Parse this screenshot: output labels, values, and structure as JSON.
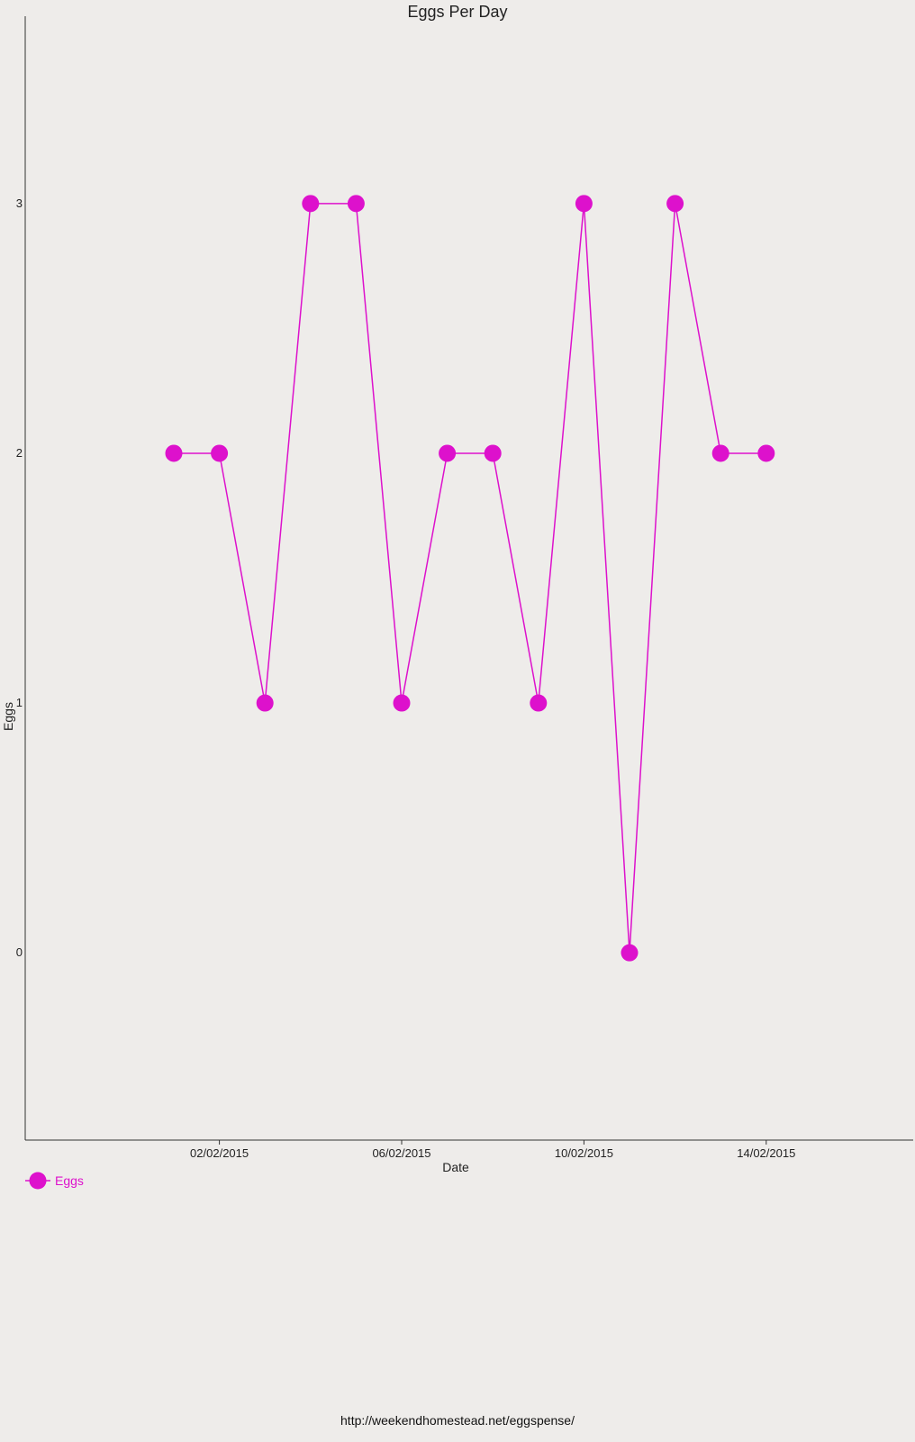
{
  "chart_data": {
    "type": "line",
    "title": "Eggs Per Day",
    "xlabel": "Date",
    "ylabel": "Eggs",
    "x_tick_labels": [
      "02/02/2015",
      "06/02/2015",
      "10/02/2015",
      "14/02/2015"
    ],
    "y_tick_labels": [
      "0",
      "1",
      "2",
      "3"
    ],
    "ylim": [
      -0.75,
      3.75
    ],
    "grid": false,
    "legend_position": "bottom-left",
    "series": [
      {
        "name": "Eggs",
        "color": "#dd11cc",
        "marker": "circle",
        "points": [
          {
            "x": "01/02/2015",
            "y": 2
          },
          {
            "x": "02/02/2015",
            "y": 2
          },
          {
            "x": "03/02/2015",
            "y": 1
          },
          {
            "x": "04/02/2015",
            "y": 3
          },
          {
            "x": "05/02/2015",
            "y": 3
          },
          {
            "x": "06/02/2015",
            "y": 1
          },
          {
            "x": "07/02/2015",
            "y": 2
          },
          {
            "x": "08/02/2015",
            "y": 2
          },
          {
            "x": "09/02/2015",
            "y": 1
          },
          {
            "x": "10/02/2015",
            "y": 3
          },
          {
            "x": "11/02/2015",
            "y": 0
          },
          {
            "x": "12/02/2015",
            "y": 3
          },
          {
            "x": "13/02/2015",
            "y": 2
          },
          {
            "x": "14/02/2015",
            "y": 2
          }
        ]
      }
    ]
  },
  "footer": {
    "url": "http://weekendhomestead.net/eggspense/"
  }
}
